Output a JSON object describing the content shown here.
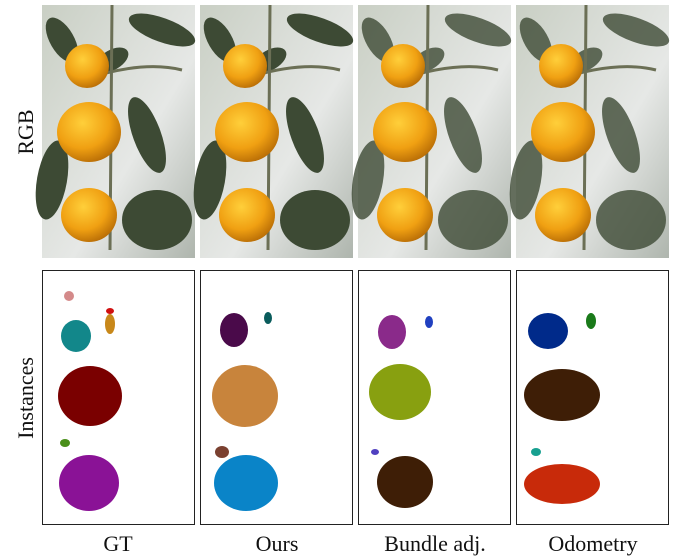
{
  "row_labels": [
    "RGB",
    "Instances"
  ],
  "column_labels": [
    "GT",
    "Ours",
    "Bundle adj.",
    "Odometry"
  ]
}
